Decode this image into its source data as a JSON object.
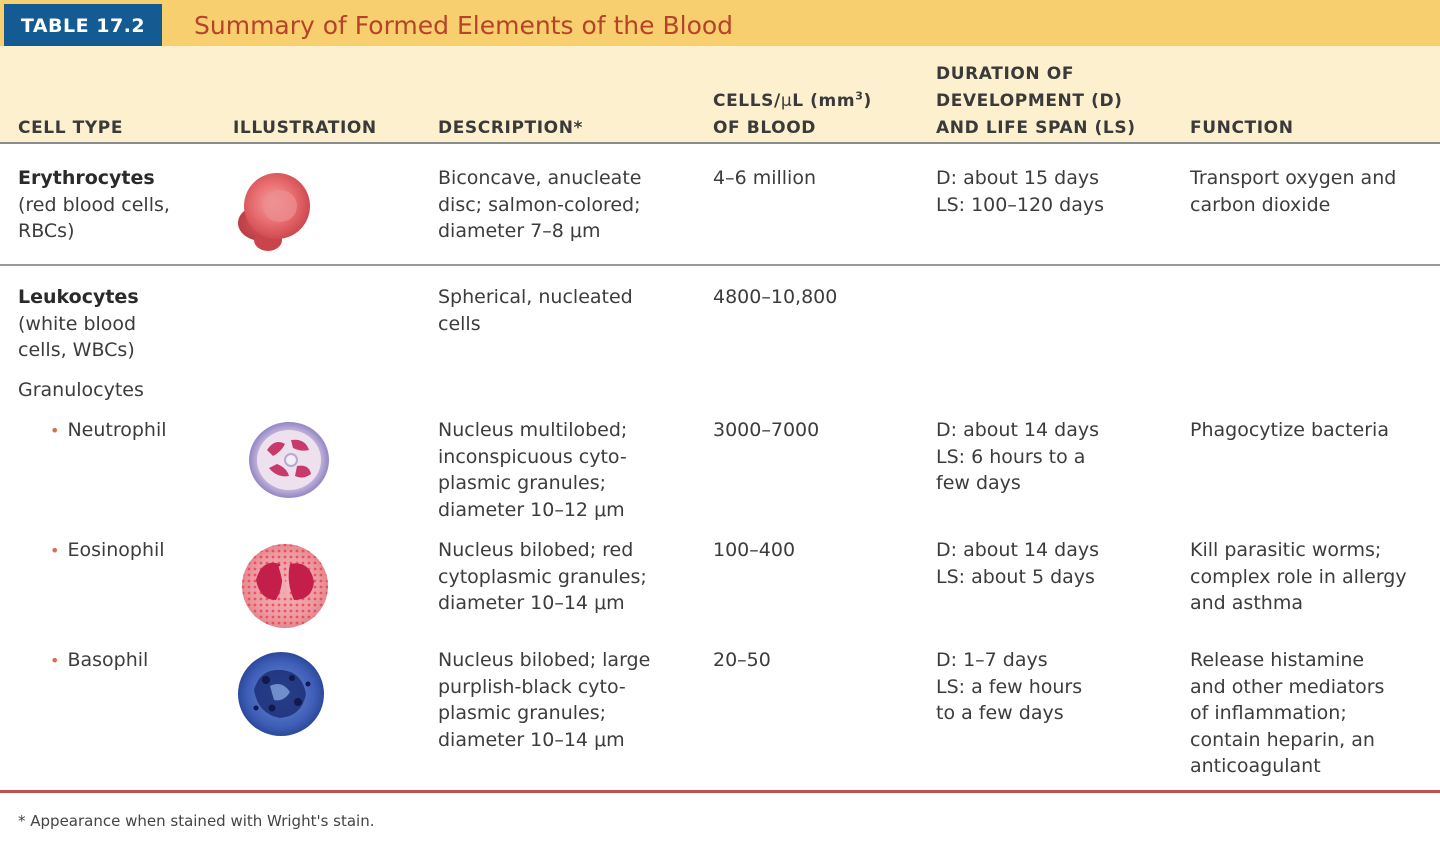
{
  "table": {
    "badge": "TABLE 17.2",
    "title": "Summary of Formed Elements of the Blood"
  },
  "columns": {
    "cell_type": "CELL TYPE",
    "illustration": "ILLUSTRATION",
    "description": "DESCRIPTION*",
    "cells_line1_prefix": "CELLS/",
    "cells_line1_mu": "μ",
    "cells_line1_l": "L (mm",
    "cells_line1_sup": "3",
    "cells_line1_close": ")",
    "cells_line2": "OF BLOOD",
    "duration_line1": "DURATION OF",
    "duration_line2": "DEVELOPMENT (D)",
    "duration_line3": "AND LIFE SPAN (LS)",
    "function": "FUNCTION"
  },
  "rows": {
    "erythrocytes": {
      "name": "Erythrocytes",
      "name_sub1": "(red blood cells,",
      "name_sub2": "RBCs)",
      "illustration_icon": "red-blood-cell-icon",
      "desc": [
        "Biconcave, anucleate",
        "disc; salmon-colored;",
        "diameter 7–8 μm"
      ],
      "count": "4–6 million",
      "duration": [
        "D: about 15 days",
        "LS: 100–120 days"
      ],
      "function": [
        "Transport oxygen and",
        "carbon dioxide"
      ]
    },
    "leukocytes": {
      "name": "Leukocytes",
      "name_sub1": "(white blood",
      "name_sub2": "cells, WBCs)",
      "desc": [
        "Spherical, nucleated",
        "cells"
      ],
      "count": "4800–10,800",
      "granulocytes_label": "Granulocytes"
    },
    "neutrophil": {
      "bullet": "•",
      "name": "Neutrophil",
      "illustration_icon": "neutrophil-icon",
      "desc": [
        "Nucleus multilobed;",
        "inconspicuous cyto-",
        "plasmic granules;",
        "diameter 10–12 μm"
      ],
      "count": "3000–7000",
      "duration": [
        "D: about 14 days",
        "LS: 6 hours to a",
        "few days"
      ],
      "function": [
        "Phagocytize bacteria"
      ]
    },
    "eosinophil": {
      "bullet": "•",
      "name": "Eosinophil",
      "illustration_icon": "eosinophil-icon",
      "desc": [
        "Nucleus bilobed; red",
        "cytoplasmic granules;",
        "diameter 10–14 μm"
      ],
      "count": "100–400",
      "duration": [
        "D: about 14 days",
        "LS: about 5 days"
      ],
      "function": [
        "Kill parasitic worms;",
        "complex role in allergy",
        "and asthma"
      ]
    },
    "basophil": {
      "bullet": "•",
      "name": "Basophil",
      "illustration_icon": "basophil-icon",
      "desc": [
        "Nucleus bilobed; large",
        "purplish-black cyto-",
        "plasmic granules;",
        "diameter 10–14 μm"
      ],
      "count": "20–50",
      "duration": [
        "D: 1–7 days",
        "LS: a few hours",
        "to a few days"
      ],
      "function": [
        "Release histamine",
        "and other mediators",
        "of inflammation;",
        "contain heparin, an",
        "anticoagulant"
      ]
    }
  },
  "footnote": "* Appearance when stained with Wright's stain.",
  "colors": {
    "badge": "#155b93",
    "title": "#b5432a",
    "header_band": "#f7cf6f",
    "column_band": "#fdf0cf",
    "bottom_rule": "#c0504d"
  }
}
